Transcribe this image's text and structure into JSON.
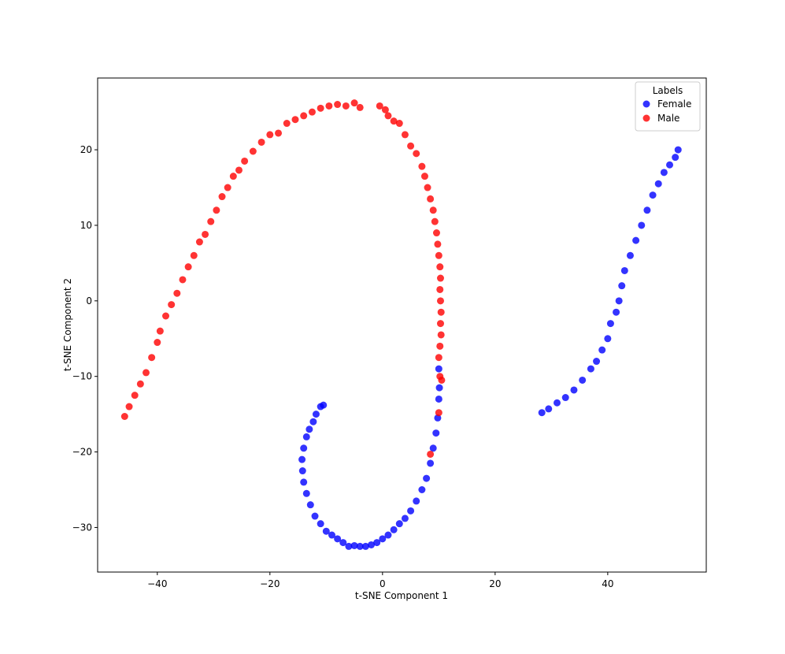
{
  "chart_data": {
    "type": "scatter",
    "xlabel": "t-SNE Component 1",
    "ylabel": "t-SNE Component 2",
    "xlim": [
      -50.6,
      57.5
    ],
    "ylim": [
      -35.9,
      29.5
    ],
    "xticks": [
      {
        "value": -40,
        "label": "−40"
      },
      {
        "value": -20,
        "label": "−20"
      },
      0,
      20,
      40
    ],
    "yticks": [
      {
        "value": -30,
        "label": "−30"
      },
      {
        "value": -20,
        "label": "−20"
      },
      {
        "value": -10,
        "label": "−10"
      },
      0,
      10,
      20
    ],
    "legend_title": "Labels",
    "legend": "upper right",
    "grid": false,
    "series": [
      {
        "name": "Female",
        "color": "#0000ff",
        "x": [
          10,
          10.1,
          10,
          9.8,
          9.5,
          9,
          8.5,
          7.8,
          7,
          6,
          5,
          4,
          3,
          2,
          1,
          0,
          -1,
          -2,
          -3,
          -4,
          -5,
          -6,
          -7,
          -8,
          -9,
          -10,
          -11,
          -12,
          -12.8,
          -13.5,
          -14,
          -14.2,
          -14.3,
          -14,
          -13.5,
          -13,
          -12.3,
          -11.8,
          -11,
          -10.5,
          28.3,
          29.5,
          31,
          32.5,
          34,
          35.5,
          37,
          38,
          39,
          40,
          40.5,
          41.5,
          42,
          42.5,
          43,
          44,
          45,
          46,
          47,
          48,
          49,
          50,
          51,
          52,
          52.5
        ],
        "values": [
          -9,
          -11.5,
          -13,
          -15.5,
          -17.5,
          -19.5,
          -21.5,
          -23.5,
          -25,
          -26.5,
          -27.8,
          -28.8,
          -29.5,
          -30.3,
          -31,
          -31.5,
          -32,
          -32.3,
          -32.5,
          -32.5,
          -32.4,
          -32.5,
          -32,
          -31.5,
          -31,
          -30.5,
          -29.5,
          -28.5,
          -27,
          -25.5,
          -24,
          -22.5,
          -21,
          -19.5,
          -18,
          -17,
          -16,
          -15,
          -14,
          -13.8,
          -14.8,
          -14.3,
          -13.5,
          -12.8,
          -11.8,
          -10.5,
          -9,
          -8,
          -6.5,
          -5,
          -3,
          -1.5,
          0,
          2,
          4,
          6,
          8,
          10,
          12,
          14,
          15.5,
          17,
          18,
          19,
          20
        ]
      },
      {
        "name": "Male",
        "color": "#ff0000",
        "x": [
          -45.8,
          -45,
          -44,
          -43,
          -42,
          -41,
          -40,
          -39.5,
          -38.5,
          -37.5,
          -36.5,
          -35.5,
          -34.5,
          -33.5,
          -32.5,
          -31.5,
          -30.5,
          -29.5,
          -28.5,
          -27.5,
          -26.5,
          -25.5,
          -24.5,
          -23,
          -21.5,
          -20,
          -18.5,
          -17,
          -15.5,
          -14,
          -12.5,
          -11,
          -9.5,
          -8,
          -6.5,
          -5,
          -4,
          -0.5,
          0.5,
          1,
          2,
          3,
          4,
          5,
          6,
          7,
          7.5,
          8,
          8.5,
          9,
          9.3,
          9.6,
          9.8,
          10,
          10.2,
          10.3,
          10.2,
          10.3,
          10.4,
          10.3,
          10.4,
          10.2,
          10,
          10.2,
          10.5,
          10,
          8.5
        ],
        "values": [
          -15.3,
          -14,
          -12.5,
          -11,
          -9.5,
          -7.5,
          -5.5,
          -4,
          -2,
          -0.5,
          1,
          2.8,
          4.5,
          6,
          7.8,
          8.8,
          10.5,
          12,
          13.8,
          15,
          16.5,
          17.3,
          18.5,
          19.8,
          21,
          22,
          22.2,
          23.5,
          24,
          24.5,
          25,
          25.5,
          25.8,
          26,
          25.8,
          26.2,
          25.6,
          25.8,
          25.3,
          24.5,
          23.8,
          23.5,
          22,
          20.5,
          19.5,
          17.8,
          16.5,
          15,
          13.5,
          12,
          10.5,
          9,
          7.5,
          6,
          4.5,
          3,
          1.5,
          0,
          -1.5,
          -3,
          -4.5,
          -6,
          -7.5,
          -10,
          -10.5,
          -14.8,
          -20.3
        ]
      }
    ]
  }
}
